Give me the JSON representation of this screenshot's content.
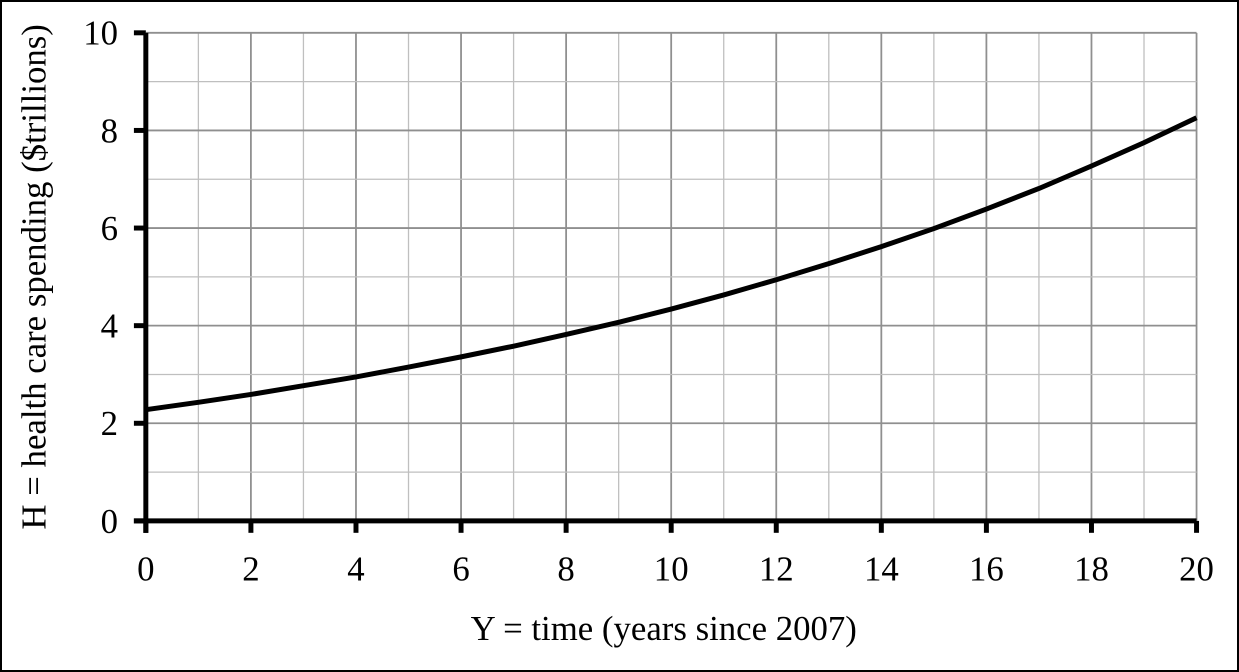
{
  "window": {
    "background": "#ffffff",
    "border_color": "#000000"
  },
  "chart_data": {
    "type": "line",
    "title": "",
    "xlabel": "Y = time (years since 2007)",
    "ylabel": "H = health care spending ($trillions)",
    "xlim": [
      0,
      20
    ],
    "ylim": [
      0,
      10
    ],
    "x_ticks": [
      0,
      2,
      4,
      6,
      8,
      10,
      12,
      14,
      16,
      18,
      20
    ],
    "y_ticks": [
      0,
      2,
      4,
      6,
      8,
      10
    ],
    "grid": {
      "on": true,
      "x_step": 1,
      "y_step": 1,
      "major_every": 2,
      "major_color": "#8f8f8f",
      "minor_color": "#bfbfbf"
    },
    "axis_color": "#000000",
    "line": {
      "color": "#000000",
      "width": 5
    },
    "x": [
      0,
      1,
      2,
      3,
      4,
      5,
      6,
      7,
      8,
      9,
      10,
      11,
      12,
      13,
      14,
      15,
      16,
      17,
      18,
      19,
      20
    ],
    "y": [
      2.28,
      2.43,
      2.59,
      2.77,
      2.95,
      3.15,
      3.36,
      3.58,
      3.82,
      4.07,
      4.34,
      4.63,
      4.94,
      5.27,
      5.62,
      5.99,
      6.39,
      6.81,
      7.27,
      7.75,
      8.26
    ]
  }
}
